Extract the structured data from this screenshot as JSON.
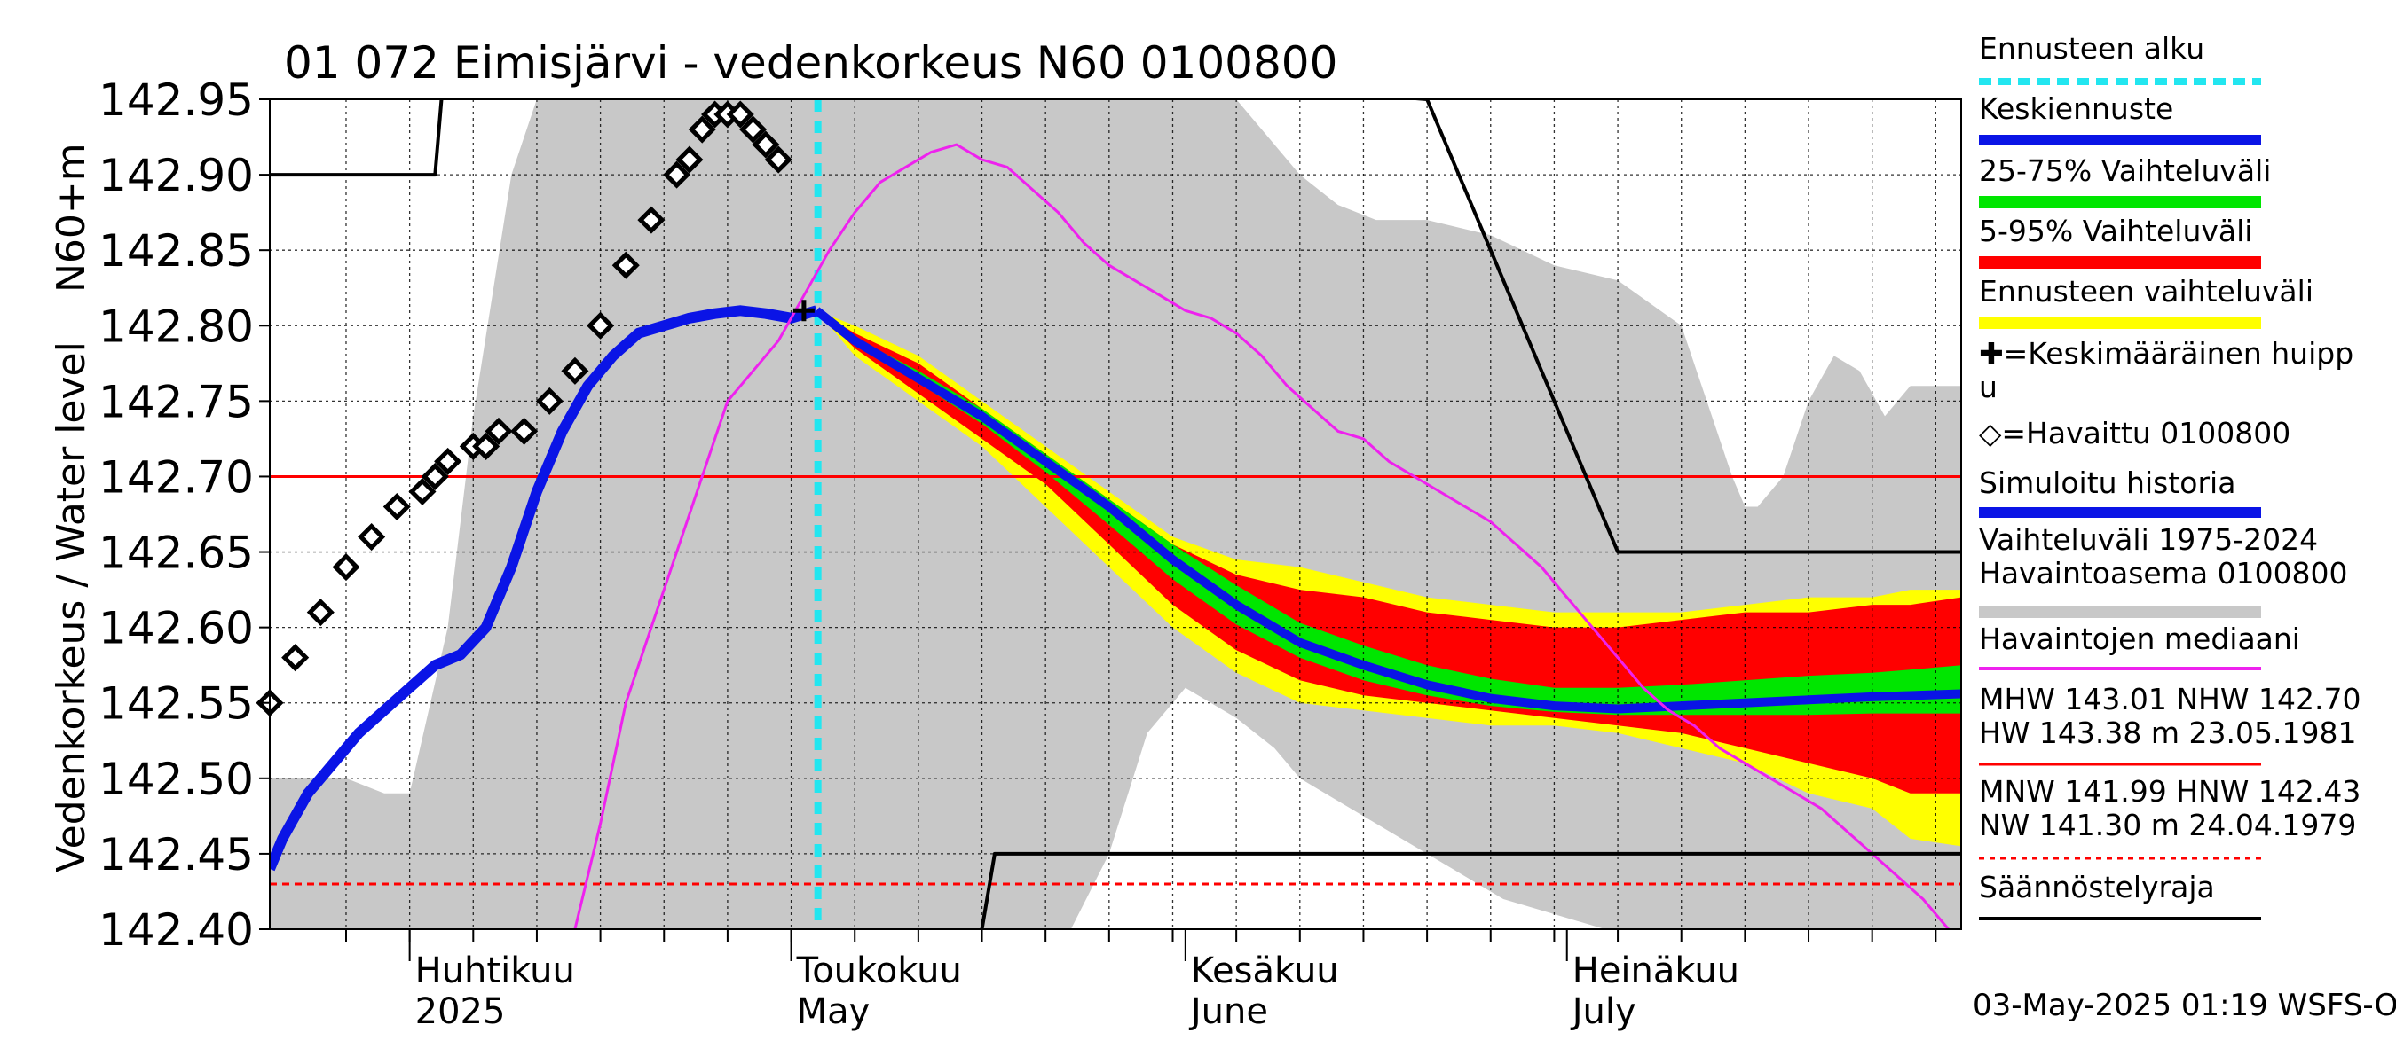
{
  "chart_data": {
    "type": "line",
    "title": "01 072 Eimisjärvi - vedenkorkeus N60 0100800",
    "ylabel_outer": "Vedenkorkeus / Water level",
    "ylabel_inner": "N60+m",
    "ylim": [
      142.4,
      142.95
    ],
    "yticks": [
      "142.95",
      "142.90",
      "142.85",
      "142.80",
      "142.75",
      "142.70",
      "142.65",
      "142.60",
      "142.55",
      "142.50",
      "142.45",
      "142.40"
    ],
    "xrange_days": [
      -11,
      122
    ],
    "month_labels": [
      {
        "day": 0,
        "fi": "Huhtikuu",
        "en": "2025"
      },
      {
        "day": 30,
        "fi": "Toukokuu",
        "en": "May"
      },
      {
        "day": 61,
        "fi": "Kesäkuu",
        "en": "June"
      },
      {
        "day": 91,
        "fi": "Heinäkuu",
        "en": "July"
      }
    ],
    "x_axis_unit": "days from 2025-04-01",
    "forecast_start_day": 32.1,
    "legend": [
      {
        "label": "Ennusteen alku",
        "color": "#22e6f0",
        "style": "dashed"
      },
      {
        "label": "Keskiennuste",
        "color": "#0a14e6",
        "style": "solid"
      },
      {
        "label": "25-75% Vaihteluväli",
        "color": "#00e600",
        "style": "solid"
      },
      {
        "label": "5-95% Vaihteluväli",
        "color": "#ff0000",
        "style": "solid"
      },
      {
        "label": "Ennusteen vaihteluväli",
        "color": "#ffff00",
        "style": "solid"
      },
      {
        "label": "✚=Keskimääräinen huipp u",
        "color": "",
        "style": "none"
      },
      {
        "label": "◇=Havaittu 0100800",
        "color": "",
        "style": "none"
      },
      {
        "label": "Simuloitu historia",
        "color": "#0a14e6",
        "style": "solid"
      },
      {
        "label": "Vaihteluväli 1975-2024 Havaintoasema 0100800",
        "color": "#c8c8c8",
        "style": "solid"
      },
      {
        "label": "Havaintojen mediaani",
        "color": "#ee22ee",
        "style": "solid"
      },
      {
        "label": "MHW 143.01 NHW 142.70 HW 143.38 m 23.05.1981",
        "color": "#ff0000",
        "style": "solid"
      },
      {
        "label": "MNW 141.99 HNW 142.43 NW 141.30 m 24.04.1979",
        "color": "#ff0000",
        "style": "dashed"
      },
      {
        "label": "Säännöstelyraja",
        "color": "#000000",
        "style": "solid"
      }
    ],
    "reference_lines": [
      {
        "name": "NHW",
        "y": 142.7,
        "color": "#ff0000",
        "style": "solid"
      },
      {
        "name": "HNW",
        "y": 142.43,
        "color": "#ff0000",
        "style": "dashed"
      }
    ],
    "footer": "03-May-2025 01:19 WSFS-O",
    "series": [
      {
        "name": "Havaittu 0100800",
        "kind": "markers",
        "x": [
          -11,
          -9,
          -7,
          -5,
          -3,
          -1,
          1,
          2,
          3,
          5,
          6,
          7,
          9,
          11,
          13,
          15,
          17,
          19,
          21,
          22,
          23,
          24,
          25,
          26,
          27,
          28,
          29
        ],
        "y": [
          142.55,
          142.58,
          142.61,
          142.64,
          142.66,
          142.68,
          142.69,
          142.7,
          142.71,
          142.72,
          142.72,
          142.73,
          142.73,
          142.75,
          142.77,
          142.8,
          142.84,
          142.87,
          142.9,
          142.91,
          142.93,
          142.94,
          142.94,
          142.94,
          142.93,
          142.92,
          142.91
        ]
      },
      {
        "name": "Simuloitu historia",
        "kind": "line",
        "color": "#0a14e6",
        "x": [
          -11,
          -10,
          -8,
          -6,
          -4,
          -2,
          0,
          2,
          4,
          6,
          8,
          10,
          12,
          14,
          16,
          18,
          20,
          22,
          24,
          26,
          28,
          30,
          32
        ],
        "y": [
          142.44,
          142.46,
          142.49,
          142.51,
          142.53,
          142.545,
          142.56,
          142.575,
          142.582,
          142.6,
          142.64,
          142.69,
          142.73,
          142.76,
          142.78,
          142.795,
          142.8,
          142.805,
          142.808,
          142.81,
          142.808,
          142.805,
          142.81
        ]
      },
      {
        "name": "Keskiennuste",
        "kind": "line",
        "color": "#0a14e6",
        "x": [
          32,
          35,
          40,
          45,
          50,
          55,
          60,
          65,
          70,
          75,
          80,
          85,
          90,
          95,
          100,
          105,
          110,
          115,
          122
        ],
        "y": [
          142.81,
          142.79,
          142.765,
          142.74,
          142.71,
          142.68,
          142.645,
          142.615,
          142.59,
          142.575,
          142.562,
          142.553,
          142.548,
          142.546,
          142.548,
          142.55,
          142.552,
          142.554,
          142.556
        ]
      },
      {
        "name": "Havaintojen mediaani",
        "kind": "line",
        "color": "#ee22ee",
        "x": [
          13,
          15,
          17,
          19,
          21,
          23,
          25,
          27,
          29,
          31,
          33,
          35,
          37,
          39,
          41,
          43,
          45,
          47,
          49,
          51,
          53,
          55,
          57,
          59,
          61,
          63,
          65,
          67,
          69,
          71,
          73,
          75,
          77,
          79,
          81,
          83,
          85,
          87,
          89,
          91,
          93,
          95,
          97,
          99,
          101,
          103,
          105,
          107,
          109,
          111,
          113,
          115,
          117,
          119,
          121
        ],
        "y": [
          142.4,
          142.47,
          142.55,
          142.6,
          142.65,
          142.7,
          142.75,
          142.77,
          142.79,
          142.82,
          142.85,
          142.875,
          142.895,
          142.905,
          142.915,
          142.92,
          142.91,
          142.905,
          142.89,
          142.875,
          142.855,
          142.84,
          142.83,
          142.82,
          142.81,
          142.805,
          142.795,
          142.78,
          142.76,
          142.745,
          142.73,
          142.725,
          142.71,
          142.7,
          142.69,
          142.68,
          142.67,
          142.655,
          142.64,
          142.62,
          142.6,
          142.58,
          142.56,
          142.545,
          142.535,
          142.52,
          142.51,
          142.5,
          142.49,
          142.48,
          142.465,
          142.45,
          142.435,
          142.42,
          142.4
        ]
      },
      {
        "name": "Säännöstelyraja (ylä)",
        "kind": "line",
        "color": "#000000",
        "x": [
          -11,
          2,
          2.5,
          3,
          80,
          95,
          122
        ],
        "y": [
          142.9,
          142.9,
          142.95,
          143.0,
          142.95,
          142.65,
          142.65
        ]
      },
      {
        "name": "Säännöstelyraja (ala)",
        "kind": "line",
        "color": "#000000",
        "x": [
          45,
          46,
          122
        ],
        "y": [
          142.4,
          142.45,
          142.45
        ]
      }
    ],
    "bands": [
      {
        "name": "Vaihteluväli 1975-2024",
        "color": "#c8c8c8",
        "x": [
          -11,
          -5,
          -2,
          0,
          3,
          5,
          8,
          10,
          12,
          14,
          16,
          18,
          20,
          30,
          40,
          50,
          60,
          61,
          63,
          65,
          67,
          70,
          73,
          76,
          80,
          85,
          90,
          95,
          100,
          102,
          104,
          105,
          106,
          108,
          110,
          112,
          114,
          116,
          118,
          122
        ],
        "low": [
          142.4,
          142.4,
          142.4,
          142.4,
          142.4,
          142.4,
          142.4,
          142.4,
          142.4,
          142.4,
          142.4,
          142.4,
          142.4,
          142.4,
          142.4,
          142.4,
          142.4,
          142.4,
          142.4,
          142.4,
          142.4,
          142.4,
          142.4,
          142.4,
          142.4,
          142.4,
          142.4,
          142.4,
          142.4,
          142.4,
          142.4,
          142.4,
          142.4,
          142.4,
          142.4,
          142.4,
          142.4,
          142.4,
          142.4,
          142.4
        ],
        "high": [
          142.5,
          142.5,
          142.49,
          142.49,
          142.6,
          142.74,
          142.9,
          142.95,
          142.95,
          142.95,
          142.95,
          142.95,
          142.95,
          142.95,
          142.95,
          142.95,
          142.95,
          142.95,
          142.95,
          142.95,
          142.93,
          142.9,
          142.88,
          142.87,
          142.87,
          142.86,
          142.84,
          142.83,
          142.8,
          142.75,
          142.7,
          142.68,
          142.68,
          142.7,
          142.75,
          142.78,
          142.77,
          142.74,
          142.76,
          142.76
        ]
      },
      {
        "name": "Vaihteluväli aukko",
        "color": "#ffffff",
        "x": [
          45,
          52,
          55,
          58,
          61,
          63,
          65,
          68,
          70,
          74,
          78,
          82,
          86,
          90,
          94,
          98,
          102,
          106,
          110,
          114,
          118,
          122
        ],
        "low": [
          142.4,
          142.4,
          142.4,
          142.4,
          142.4,
          142.4,
          142.4,
          142.4,
          142.4,
          142.4,
          142.4,
          142.4,
          142.4,
          142.4,
          142.4,
          142.4,
          142.4,
          142.4,
          142.4,
          142.4,
          142.4,
          142.4
        ],
        "high": [
          142.4,
          142.4,
          142.45,
          142.53,
          142.56,
          142.55,
          142.54,
          142.52,
          142.5,
          142.48,
          142.46,
          142.44,
          142.42,
          142.41,
          142.4,
          142.4,
          142.4,
          142.4,
          142.4,
          142.4,
          142.4,
          142.4
        ]
      },
      {
        "name": "Ennusteen vaihteluväli",
        "color": "#ffff00",
        "x": [
          32,
          35,
          40,
          45,
          50,
          55,
          60,
          65,
          70,
          75,
          80,
          85,
          90,
          95,
          100,
          105,
          110,
          115,
          118,
          122
        ],
        "low": [
          142.81,
          142.78,
          142.75,
          142.72,
          142.68,
          142.64,
          142.6,
          142.57,
          142.55,
          142.545,
          142.54,
          142.535,
          142.535,
          142.53,
          142.52,
          142.51,
          142.49,
          142.48,
          142.46,
          142.455
        ],
        "high": [
          142.81,
          142.8,
          142.78,
          142.75,
          142.72,
          142.69,
          142.66,
          142.645,
          142.64,
          142.63,
          142.62,
          142.615,
          142.61,
          142.61,
          142.61,
          142.615,
          142.62,
          142.62,
          142.625,
          142.625
        ]
      },
      {
        "name": "5-95% Vaihteluväli",
        "color": "#ff0000",
        "x": [
          32,
          35,
          40,
          45,
          50,
          55,
          60,
          65,
          70,
          75,
          80,
          85,
          90,
          95,
          100,
          105,
          110,
          115,
          118,
          122
        ],
        "low": [
          142.81,
          142.785,
          142.755,
          142.725,
          142.695,
          142.655,
          142.615,
          142.585,
          142.565,
          142.555,
          142.55,
          142.545,
          142.54,
          142.535,
          142.53,
          142.52,
          142.51,
          142.5,
          142.49,
          142.49
        ],
        "high": [
          142.81,
          142.795,
          142.775,
          142.745,
          142.715,
          142.685,
          142.655,
          142.635,
          142.625,
          142.62,
          142.61,
          142.605,
          142.6,
          142.6,
          142.605,
          142.61,
          142.61,
          142.615,
          142.615,
          142.62
        ]
      },
      {
        "name": "25-75% Vaihteluväli",
        "color": "#00e600",
        "x": [
          32,
          35,
          40,
          45,
          50,
          55,
          60,
          65,
          70,
          75,
          80,
          85,
          90,
          95,
          100,
          105,
          110,
          115,
          118,
          122
        ],
        "low": [
          142.81,
          142.788,
          142.762,
          142.735,
          142.703,
          142.668,
          142.632,
          142.602,
          142.58,
          142.565,
          142.555,
          142.548,
          142.544,
          142.542,
          142.542,
          142.542,
          142.542,
          142.543,
          142.543,
          142.543
        ],
        "high": [
          142.81,
          142.792,
          142.77,
          142.745,
          142.715,
          142.685,
          142.655,
          142.628,
          142.603,
          142.588,
          142.575,
          142.566,
          142.56,
          142.56,
          142.562,
          142.565,
          142.568,
          142.57,
          142.572,
          142.575
        ]
      }
    ],
    "peak_marker": {
      "name": "Keskimääräinen huippu",
      "x": 31,
      "y": 142.81
    }
  }
}
